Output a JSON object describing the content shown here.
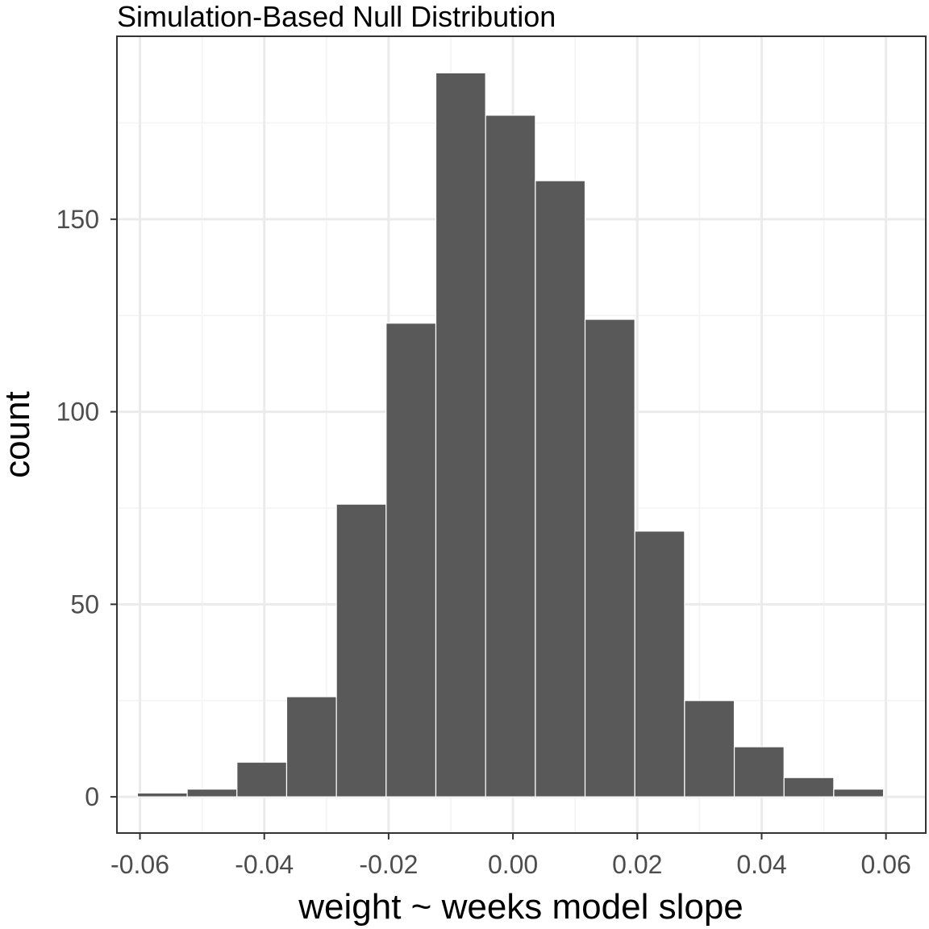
{
  "chart_data": {
    "type": "bar",
    "title": "Simulation-Based Null Distribution",
    "xlabel": "weight ~ weeks model slope",
    "ylabel": "count",
    "xlim": [
      -0.0637,
      0.0664
    ],
    "ylim": [
      -9.4,
      197.5
    ],
    "x_ticks": [
      -0.06,
      -0.04,
      -0.02,
      0.0,
      0.02,
      0.04,
      0.06
    ],
    "x_tick_labels": [
      "-0.06",
      "-0.04",
      "-0.02",
      "0.00",
      "0.02",
      "0.04",
      "0.06"
    ],
    "y_ticks": [
      0,
      50,
      100,
      150
    ],
    "y_tick_labels": [
      "0",
      "50",
      "100",
      "150"
    ],
    "bin_width": 0.008,
    "bins": [
      {
        "xmin": -0.0604,
        "xmax": -0.0524,
        "count": 1
      },
      {
        "xmin": -0.0524,
        "xmax": -0.0444,
        "count": 2
      },
      {
        "xmin": -0.0444,
        "xmax": -0.0364,
        "count": 9
      },
      {
        "xmin": -0.0364,
        "xmax": -0.0284,
        "count": 26
      },
      {
        "xmin": -0.0284,
        "xmax": -0.0204,
        "count": 76
      },
      {
        "xmin": -0.0204,
        "xmax": -0.0124,
        "count": 123
      },
      {
        "xmin": -0.0124,
        "xmax": -0.0044,
        "count": 188
      },
      {
        "xmin": -0.0044,
        "xmax": 0.0036,
        "count": 177
      },
      {
        "xmin": 0.0036,
        "xmax": 0.0116,
        "count": 160
      },
      {
        "xmin": 0.0116,
        "xmax": 0.0196,
        "count": 124
      },
      {
        "xmin": 0.0196,
        "xmax": 0.0276,
        "count": 69
      },
      {
        "xmin": 0.0276,
        "xmax": 0.0356,
        "count": 25
      },
      {
        "xmin": 0.0356,
        "xmax": 0.0436,
        "count": 13
      },
      {
        "xmin": 0.0436,
        "xmax": 0.0516,
        "count": 5
      },
      {
        "xmin": 0.0516,
        "xmax": 0.0596,
        "count": 2
      }
    ],
    "grid": true,
    "colors": {
      "bar_fill": "#595959",
      "bar_outline": "#ffffff",
      "grid_major": "#ebebeb",
      "grid_minor": "#f3f3f3",
      "panel_border": "#333333",
      "tick_text": "#4d4d4d"
    }
  }
}
